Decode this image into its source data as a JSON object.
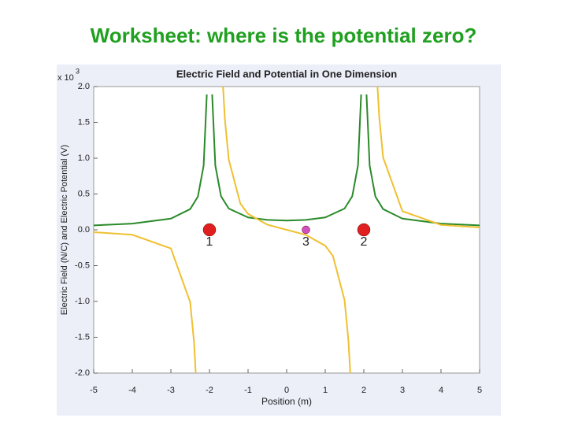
{
  "slide_title": "Worksheet: where is the potential zero?",
  "chart_data": {
    "type": "line",
    "title": "Electric Field and Potential in One Dimension",
    "x_label": "Position (m)",
    "y_label": "Electric Field (N/C) and Electric Potential (V)",
    "y_multiplier": "x 10",
    "y_multiplier_exponent": "3",
    "xlim": [
      -5,
      5
    ],
    "xticks": [
      -5,
      -4,
      -3,
      -2,
      -1,
      0,
      1,
      2,
      3,
      4,
      5
    ],
    "ylim": [
      -2,
      2
    ],
    "yticks": [
      {
        "value": -2,
        "label": "-2.0"
      },
      {
        "value": -1.5,
        "label": "-1.5"
      },
      {
        "value": -1,
        "label": "-1.0"
      },
      {
        "value": -0.5,
        "label": "-0.5"
      },
      {
        "value": 0,
        "label": "0.0"
      },
      {
        "value": 0.5,
        "label": "0.5"
      },
      {
        "value": 1,
        "label": "1.0"
      },
      {
        "value": 1.5,
        "label": "1.5"
      },
      {
        "value": 2,
        "label": "2.0"
      }
    ],
    "series": [
      {
        "color": "#2a8a2a",
        "x": [
          -5,
          -4,
          -3,
          -2.5,
          -2.3,
          -2.15,
          -2.07,
          -2,
          -1.93,
          -1.85,
          -1.7,
          -1.5,
          -1,
          -0.5,
          0,
          0.5,
          1,
          1.5,
          1.7,
          1.85,
          1.93,
          2,
          2.07,
          2.15,
          2.3,
          2.5,
          3,
          4,
          5
        ],
        "values": [
          0.062,
          0.087,
          0.156,
          0.289,
          0.464,
          0.898,
          1.889,
          null,
          1.89,
          0.9,
          0.468,
          0.297,
          0.173,
          0.139,
          0.13,
          0.139,
          0.173,
          0.297,
          0.468,
          0.9,
          1.89,
          null,
          1.889,
          0.898,
          0.464,
          0.289,
          0.156,
          0.087,
          0.062
        ]
      },
      {
        "color": "#f0c030",
        "x": [
          -5,
          -4,
          -3,
          -2.5,
          -2.4,
          -2.35,
          -2,
          -1.65,
          -1.6,
          -1.5,
          -1.2,
          -1,
          -0.5,
          0,
          0.5,
          1,
          1.2,
          1.5,
          1.6,
          1.65,
          2,
          2.35,
          2.4,
          2.5,
          3,
          4,
          5
        ],
        "values": [
          -0.033,
          -0.069,
          -0.26,
          -1.01,
          -1.57,
          -2.05,
          null,
          2.02,
          1.54,
          0.98,
          0.366,
          0.222,
          0.071,
          0,
          -0.071,
          -0.222,
          -0.366,
          -0.98,
          -1.54,
          -2.02,
          null,
          2.05,
          1.57,
          1.01,
          0.26,
          0.069,
          0.033
        ]
      }
    ],
    "points": [
      {
        "label": "1",
        "x": -2,
        "y": 0,
        "color": "#e02020"
      },
      {
        "label": "3",
        "x": 0.5,
        "y": 0,
        "color": "#d050c0"
      },
      {
        "label": "2",
        "x": 2,
        "y": 0,
        "color": "#e02020"
      }
    ]
  }
}
